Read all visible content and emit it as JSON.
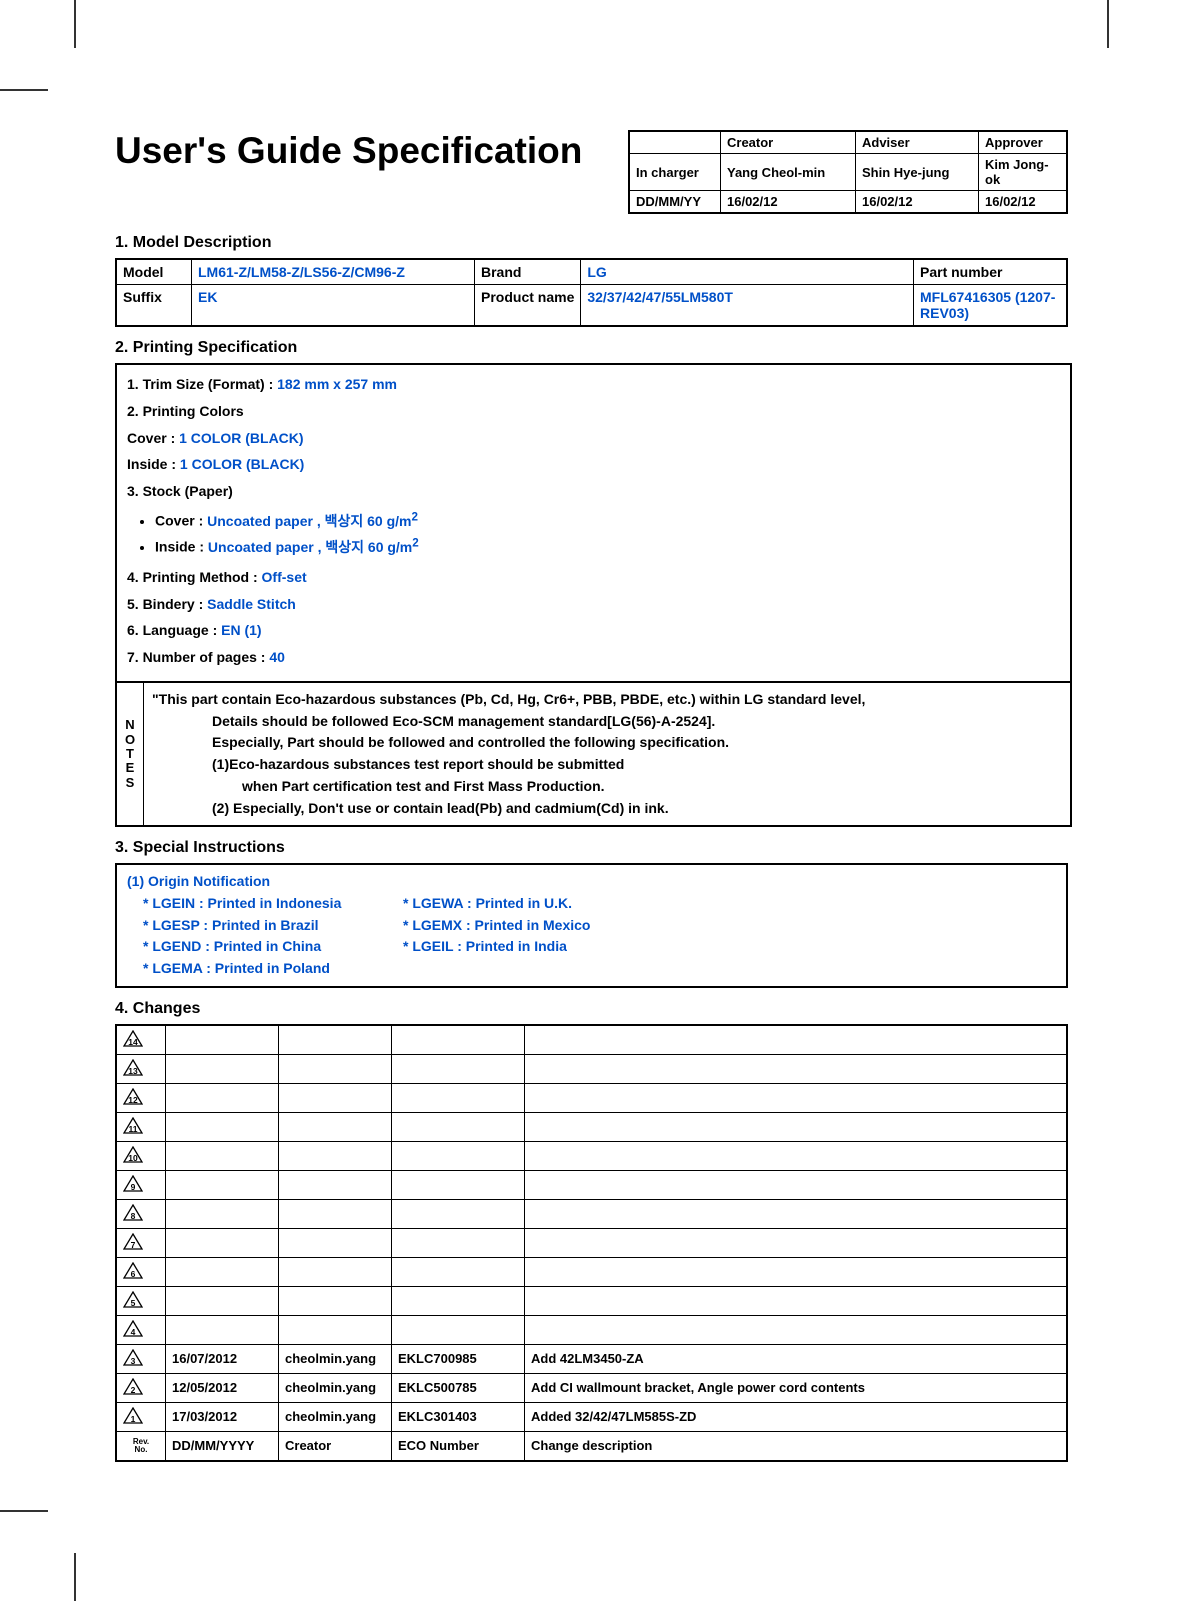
{
  "colors": {
    "blue": "#0050c8",
    "black": "#000000",
    "bg": "#ffffff"
  },
  "title": "User's Guide Specification",
  "approval": {
    "headers": [
      "",
      "Creator",
      "Adviser",
      "Approver"
    ],
    "rows": [
      {
        "label": "In charger",
        "creator": "Yang Cheol-min",
        "adviser": "Shin Hye-jung",
        "approver": "Kim Jong-ok"
      },
      {
        "label": "DD/MM/YY",
        "creator": "16/02/12",
        "adviser": "16/02/12",
        "approver": "16/02/12"
      }
    ]
  },
  "s1": {
    "heading": "1. Model Description",
    "model_label": "Model",
    "model_value": "LM61-Z/LM58-Z/LS56-Z/CM96-Z",
    "brand_label": "Brand",
    "brand_value": "LG",
    "partnum_label": "Part number",
    "suffix_label": "Suffix",
    "suffix_value": "EK",
    "prodname_label": "Product name",
    "prodname_value": "32/37/42/47/55LM580T",
    "partnum_value": "MFL67416305 (1207-REV03)"
  },
  "s2": {
    "heading": "2. Printing Specification",
    "l1a": "1. Trim Size (Format) : ",
    "l1b": "182 mm x 257 mm",
    "l2": "2. Printing Colors",
    "l2a": " Cover : ",
    "l2a_v": "1 COLOR (BLACK)",
    "l2b": " Inside : ",
    "l2b_v": "1 COLOR (BLACK)",
    "l3": "3. Stock (Paper)",
    "l3a": "Cover : ",
    "l3a_v": "Uncoated paper ,  백상지 60 g/m",
    "sup": "2",
    "l3b": "Inside : ",
    "l3b_v": "Uncoated paper ,  백상지 60 g/m",
    "l4a": "4. Printing Method : ",
    "l4b": "Off-set",
    "l5a": "5. Bindery  : ",
    "l5b": "Saddle Stitch",
    "l6a": "6. Language : ",
    "l6b": "EN (1)",
    "l7a": "7. Number of pages : ",
    "l7b": "40",
    "notes_label": [
      "N",
      "O",
      "T",
      "E",
      "S"
    ],
    "notes": [
      "\"This part contain Eco-hazardous substances (Pb, Cd, Hg, Cr6+, PBB, PBDE, etc.) within LG standard level,",
      "Details should be followed Eco-SCM management standard[LG(56)-A-2524].",
      "Especially, Part should be followed and controlled the following specification.",
      "(1)Eco-hazardous substances test report should be submitted",
      "when  Part certification test and First Mass Production.",
      "(2) Especially, Don't use or contain lead(Pb) and cadmium(Cd) in ink."
    ]
  },
  "s3": {
    "heading": "3. Special Instructions",
    "title": "(1) Origin Notification",
    "left": [
      "* LGEIN : Printed in Indonesia",
      "* LGESP : Printed in Brazil",
      "* LGEND : Printed in China",
      "* LGEMA : Printed in Poland"
    ],
    "right": [
      "* LGEWA : Printed in U.K.",
      "* LGEMX : Printed in Mexico",
      "* LGEIL : Printed in India"
    ]
  },
  "s4": {
    "heading": "4. Changes",
    "empty_revs": [
      "14",
      "13",
      "12",
      "11",
      "10",
      "9",
      "8",
      "7",
      "6",
      "5",
      "4"
    ],
    "filled": [
      {
        "rev": "3",
        "date": "16/07/2012",
        "creator": "cheolmin.yang",
        "eco": "EKLC700985",
        "desc": "Add 42LM3450-ZA"
      },
      {
        "rev": "2",
        "date": "12/05/2012",
        "creator": "cheolmin.yang",
        "eco": "EKLC500785",
        "desc": "Add CI wallmount bracket, Angle power cord contents"
      },
      {
        "rev": "1",
        "date": "17/03/2012",
        "creator": "cheolmin.yang",
        "eco": "EKLC301403",
        "desc": "Added 32/42/47LM585S-ZD"
      }
    ],
    "foot": {
      "rev": "Rev.\nNo.",
      "date": "DD/MM/YYYY",
      "creator": "Creator",
      "eco": "ECO Number",
      "desc": "Change description"
    }
  }
}
